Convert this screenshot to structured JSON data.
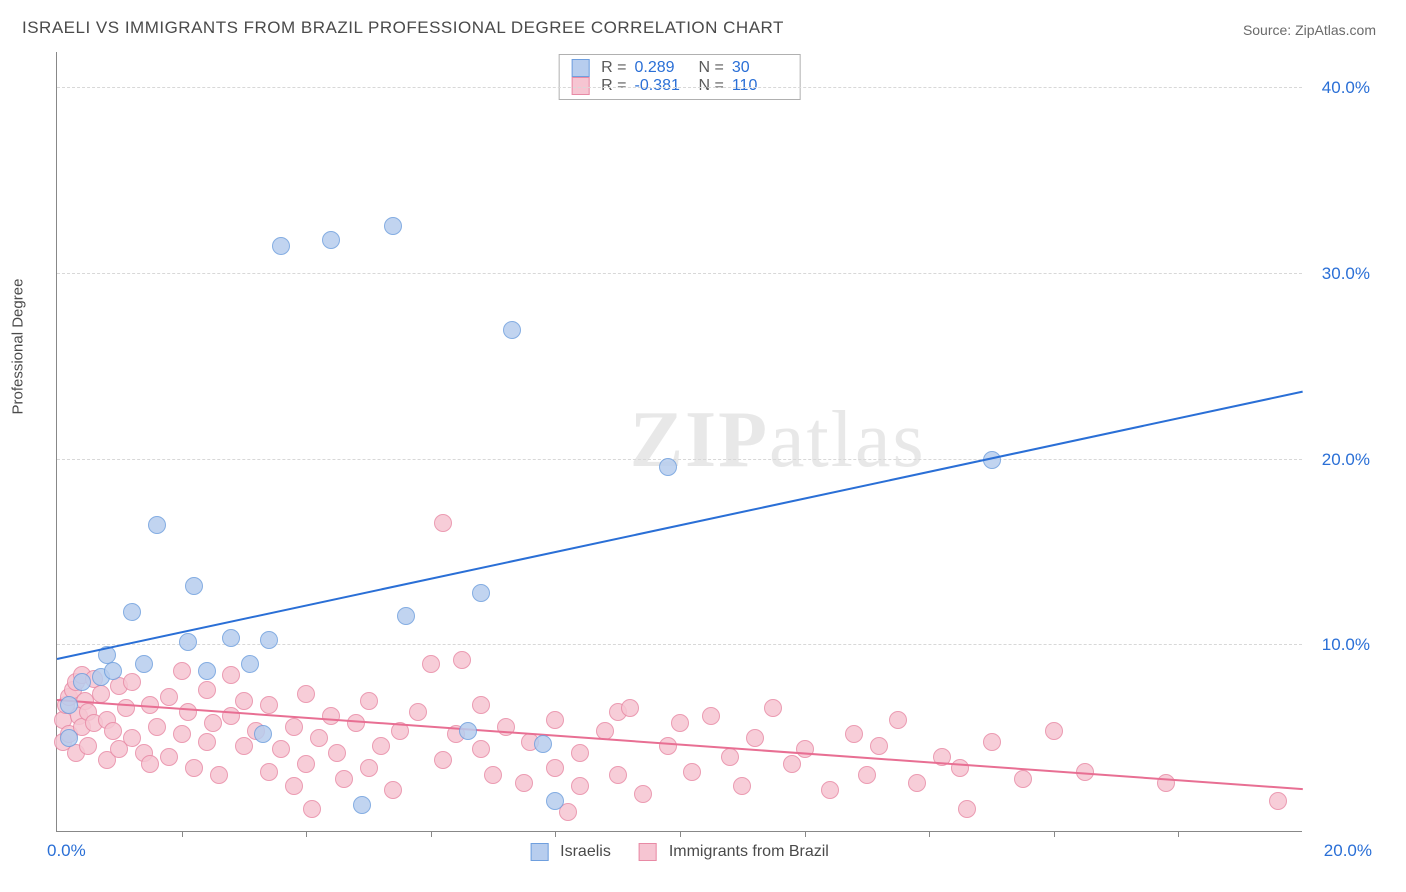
{
  "title": "ISRAELI VS IMMIGRANTS FROM BRAZIL PROFESSIONAL DEGREE CORRELATION CHART",
  "source": "Source: ZipAtlas.com",
  "y_axis_label": "Professional Degree",
  "watermark_a": "ZIP",
  "watermark_b": "atlas",
  "chart": {
    "type": "scatter",
    "xlim": [
      0,
      20
    ],
    "ylim": [
      0,
      42
    ],
    "x_tick_labels": [
      "0.0%",
      "20.0%"
    ],
    "y_tick_labels": [
      "10.0%",
      "20.0%",
      "30.0%",
      "40.0%"
    ],
    "y_tick_values": [
      10,
      20,
      30,
      40
    ],
    "x_minor_ticks": [
      2,
      4,
      6,
      8,
      10,
      12,
      14,
      16,
      18
    ],
    "grid_color": "#d8d8d8",
    "background_color": "#ffffff",
    "axis_color": "#888888",
    "tick_label_color": "#2a6fd6",
    "tick_fontsize": 17,
    "marker_radius": 9,
    "marker_stroke_width": 1.2,
    "series": [
      {
        "name": "Israelis",
        "fill": "#b7cdee",
        "stroke": "#6f9fde",
        "legend_label": "Israelis",
        "stats": {
          "R_label": "R =",
          "R": "0.289",
          "N_label": "N =",
          "N": "30"
        },
        "trend": {
          "x1": 0,
          "y1": 9.2,
          "x2": 20,
          "y2": 23.6,
          "color": "#2a6fd6",
          "width": 2
        },
        "points": [
          [
            0.2,
            5.0
          ],
          [
            0.2,
            6.8
          ],
          [
            0.4,
            8.0
          ],
          [
            0.7,
            8.3
          ],
          [
            0.8,
            9.5
          ],
          [
            0.9,
            8.6
          ],
          [
            1.2,
            11.8
          ],
          [
            1.4,
            9.0
          ],
          [
            1.6,
            16.5
          ],
          [
            2.1,
            10.2
          ],
          [
            2.2,
            13.2
          ],
          [
            2.4,
            8.6
          ],
          [
            2.8,
            10.4
          ],
          [
            3.1,
            9.0
          ],
          [
            3.3,
            5.2
          ],
          [
            3.4,
            10.3
          ],
          [
            3.6,
            31.5
          ],
          [
            4.4,
            31.8
          ],
          [
            4.9,
            1.4
          ],
          [
            5.4,
            32.6
          ],
          [
            5.6,
            11.6
          ],
          [
            6.6,
            5.4
          ],
          [
            6.8,
            12.8
          ],
          [
            7.3,
            27.0
          ],
          [
            7.8,
            4.7
          ],
          [
            8.0,
            1.6
          ],
          [
            9.8,
            19.6
          ],
          [
            15.0,
            20.0
          ]
        ]
      },
      {
        "name": "Immigrants from Brazil",
        "fill": "#f6c5d2",
        "stroke": "#e88aa5",
        "legend_label": "Immigrants from Brazil",
        "stats": {
          "R_label": "R =",
          "R": "-0.381",
          "N_label": "N =",
          "N": "110"
        },
        "trend": {
          "x1": 0,
          "y1": 7.0,
          "x2": 20,
          "y2": 2.2,
          "color": "#e86f93",
          "width": 2
        },
        "points": [
          [
            0.1,
            4.8
          ],
          [
            0.1,
            6.0
          ],
          [
            0.15,
            6.8
          ],
          [
            0.2,
            7.2
          ],
          [
            0.2,
            5.2
          ],
          [
            0.25,
            7.6
          ],
          [
            0.3,
            8.0
          ],
          [
            0.3,
            4.2
          ],
          [
            0.35,
            6.2
          ],
          [
            0.4,
            8.4
          ],
          [
            0.4,
            5.6
          ],
          [
            0.45,
            7.0
          ],
          [
            0.5,
            6.4
          ],
          [
            0.5,
            4.6
          ],
          [
            0.6,
            8.2
          ],
          [
            0.6,
            5.8
          ],
          [
            0.7,
            7.4
          ],
          [
            0.8,
            6.0
          ],
          [
            0.8,
            3.8
          ],
          [
            0.9,
            5.4
          ],
          [
            1.0,
            7.8
          ],
          [
            1.0,
            4.4
          ],
          [
            1.1,
            6.6
          ],
          [
            1.2,
            5.0
          ],
          [
            1.2,
            8.0
          ],
          [
            1.4,
            4.2
          ],
          [
            1.5,
            6.8
          ],
          [
            1.5,
            3.6
          ],
          [
            1.6,
            5.6
          ],
          [
            1.8,
            7.2
          ],
          [
            1.8,
            4.0
          ],
          [
            2.0,
            8.6
          ],
          [
            2.0,
            5.2
          ],
          [
            2.1,
            6.4
          ],
          [
            2.2,
            3.4
          ],
          [
            2.4,
            7.6
          ],
          [
            2.4,
            4.8
          ],
          [
            2.5,
            5.8
          ],
          [
            2.6,
            3.0
          ],
          [
            2.8,
            6.2
          ],
          [
            2.8,
            8.4
          ],
          [
            3.0,
            4.6
          ],
          [
            3.0,
            7.0
          ],
          [
            3.2,
            5.4
          ],
          [
            3.4,
            3.2
          ],
          [
            3.4,
            6.8
          ],
          [
            3.6,
            4.4
          ],
          [
            3.8,
            2.4
          ],
          [
            3.8,
            5.6
          ],
          [
            4.0,
            7.4
          ],
          [
            4.0,
            3.6
          ],
          [
            4.1,
            1.2
          ],
          [
            4.2,
            5.0
          ],
          [
            4.4,
            6.2
          ],
          [
            4.5,
            4.2
          ],
          [
            4.6,
            2.8
          ],
          [
            4.8,
            5.8
          ],
          [
            5.0,
            3.4
          ],
          [
            5.0,
            7.0
          ],
          [
            5.2,
            4.6
          ],
          [
            5.4,
            2.2
          ],
          [
            5.5,
            5.4
          ],
          [
            5.8,
            6.4
          ],
          [
            6.0,
            9.0
          ],
          [
            6.2,
            3.8
          ],
          [
            6.2,
            16.6
          ],
          [
            6.4,
            5.2
          ],
          [
            6.5,
            9.2
          ],
          [
            6.8,
            4.4
          ],
          [
            6.8,
            6.8
          ],
          [
            7.0,
            3.0
          ],
          [
            7.2,
            5.6
          ],
          [
            7.5,
            2.6
          ],
          [
            7.6,
            4.8
          ],
          [
            8.0,
            6.0
          ],
          [
            8.0,
            3.4
          ],
          [
            8.2,
            1.0
          ],
          [
            8.4,
            4.2
          ],
          [
            8.4,
            2.4
          ],
          [
            8.8,
            5.4
          ],
          [
            9.0,
            6.4
          ],
          [
            9.0,
            3.0
          ],
          [
            9.2,
            6.6
          ],
          [
            9.4,
            2.0
          ],
          [
            9.8,
            4.6
          ],
          [
            10.0,
            5.8
          ],
          [
            10.2,
            3.2
          ],
          [
            10.5,
            6.2
          ],
          [
            10.8,
            4.0
          ],
          [
            11.0,
            2.4
          ],
          [
            11.2,
            5.0
          ],
          [
            11.5,
            6.6
          ],
          [
            11.8,
            3.6
          ],
          [
            12.0,
            4.4
          ],
          [
            12.4,
            2.2
          ],
          [
            12.8,
            5.2
          ],
          [
            13.0,
            3.0
          ],
          [
            13.2,
            4.6
          ],
          [
            13.5,
            6.0
          ],
          [
            13.8,
            2.6
          ],
          [
            14.2,
            4.0
          ],
          [
            14.5,
            3.4
          ],
          [
            14.6,
            1.2
          ],
          [
            15.0,
            4.8
          ],
          [
            15.5,
            2.8
          ],
          [
            16.0,
            5.4
          ],
          [
            16.5,
            3.2
          ],
          [
            17.8,
            2.6
          ],
          [
            19.6,
            1.6
          ]
        ]
      }
    ]
  },
  "legend_bottom": {
    "items": [
      {
        "label": "Israelis"
      },
      {
        "label": "Immigrants from Brazil"
      }
    ]
  }
}
